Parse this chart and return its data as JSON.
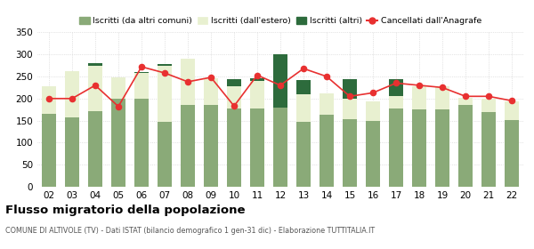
{
  "years": [
    "02",
    "03",
    "04",
    "05",
    "06",
    "07",
    "08",
    "09",
    "10",
    "11",
    "12",
    "13",
    "14",
    "15",
    "16",
    "17",
    "18",
    "19",
    "20",
    "21",
    "22"
  ],
  "iscritti_altri_comuni": [
    165,
    158,
    172,
    200,
    200,
    147,
    185,
    185,
    178,
    178,
    180,
    148,
    163,
    153,
    150,
    178,
    175,
    175,
    185,
    170,
    152
  ],
  "iscritti_estero": [
    62,
    105,
    103,
    48,
    58,
    127,
    105,
    60,
    50,
    62,
    0,
    62,
    48,
    47,
    43,
    27,
    52,
    52,
    17,
    30,
    42
  ],
  "iscritti_altri": [
    0,
    0,
    5,
    0,
    3,
    5,
    0,
    0,
    15,
    5,
    120,
    32,
    0,
    43,
    0,
    38,
    0,
    0,
    0,
    0,
    0
  ],
  "cancellati": [
    200,
    200,
    230,
    182,
    272,
    258,
    238,
    248,
    183,
    253,
    230,
    268,
    250,
    205,
    213,
    235,
    230,
    225,
    205,
    205,
    195
  ],
  "color_altri_comuni": "#8aaa78",
  "color_estero": "#e8f0d0",
  "color_altri": "#2d6b3c",
  "color_cancellati": "#e83030",
  "title_main": "Flusso migratorio della popolazione",
  "title_sub": "COMUNE DI ALTIVOLE (TV) - Dati ISTAT (bilancio demografico 1 gen-31 dic) - Elaborazione TUTTITALIA.IT",
  "legend_labels": [
    "Iscritti (da altri comuni)",
    "Iscritti (dall'estero)",
    "Iscritti (altri)",
    "Cancellati dall'Anagrafe"
  ],
  "ylim": [
    0,
    350
  ],
  "yticks": [
    0,
    50,
    100,
    150,
    200,
    250,
    300,
    350
  ],
  "bg_color": "#ffffff",
  "grid_color": "#cccccc"
}
